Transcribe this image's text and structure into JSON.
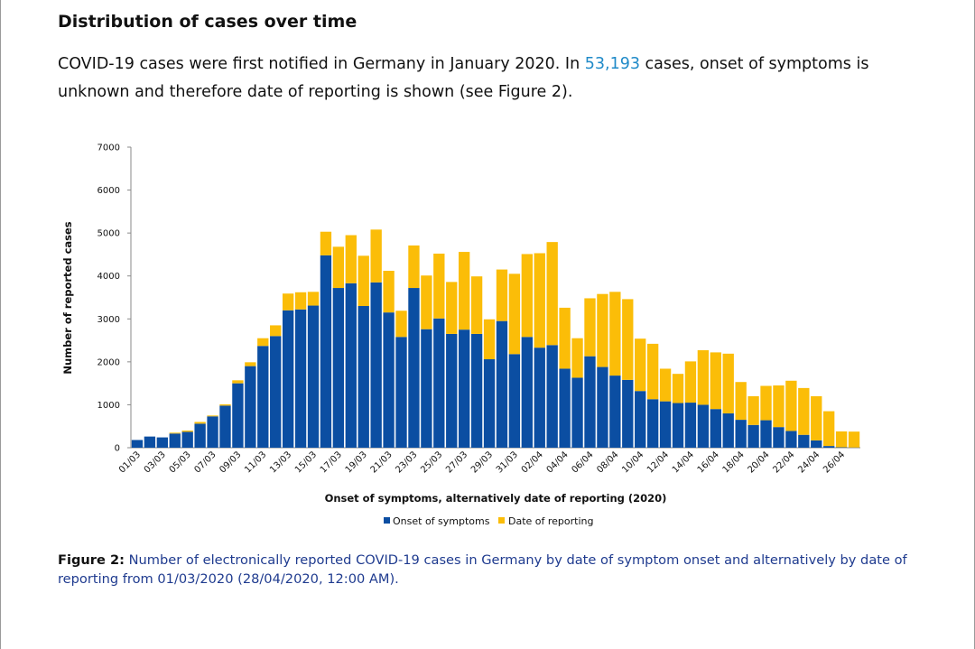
{
  "header": {
    "title": "Distribution of cases over time"
  },
  "intro": {
    "text_before": "COVID-19 cases were first notified in Germany in January 2020. In ",
    "highlight": "53,193",
    "text_after": " cases, onset of symptoms is unknown and therefore date of reporting is shown (see Figure 2)."
  },
  "colors": {
    "onset": "#0b4ea2",
    "reporting": "#fbbd08",
    "link": "#1f8ac8",
    "caption": "#1f3b8f"
  },
  "chart_data": {
    "type": "bar",
    "stacked": true,
    "title": "",
    "xlabel": "Onset of symptoms, alternatively date of reporting (2020)",
    "ylabel": "Number of reported cases",
    "ylim": [
      0,
      7000
    ],
    "yticks": [
      0,
      1000,
      2000,
      3000,
      4000,
      5000,
      6000,
      7000
    ],
    "xtick_labels": [
      "01/03",
      "03/03",
      "05/03",
      "07/03",
      "09/03",
      "11/03",
      "13/03",
      "15/03",
      "17/03",
      "19/03",
      "21/03",
      "23/03",
      "25/03",
      "27/03",
      "29/03",
      "31/03",
      "02/04",
      "04/04",
      "06/04",
      "08/04",
      "10/04",
      "12/04",
      "14/04",
      "16/04",
      "18/04",
      "20/04",
      "22/04",
      "24/04",
      "26/04"
    ],
    "categories": [
      "01/03",
      "02/03",
      "03/03",
      "04/03",
      "05/03",
      "06/03",
      "07/03",
      "08/03",
      "09/03",
      "10/03",
      "11/03",
      "12/03",
      "13/03",
      "14/03",
      "15/03",
      "16/03",
      "17/03",
      "18/03",
      "19/03",
      "20/03",
      "21/03",
      "22/03",
      "23/03",
      "24/03",
      "25/03",
      "26/03",
      "27/03",
      "28/03",
      "29/03",
      "30/03",
      "31/03",
      "01/04",
      "02/04",
      "03/04",
      "04/04",
      "05/04",
      "06/04",
      "07/04",
      "08/04",
      "09/04",
      "10/04",
      "11/04",
      "12/04",
      "13/04",
      "14/04",
      "15/04",
      "16/04",
      "17/04",
      "18/04",
      "19/04",
      "20/04",
      "21/04",
      "22/04",
      "23/04",
      "24/04",
      "25/04",
      "26/04",
      "27/04"
    ],
    "legend_position": "bottom",
    "series": [
      {
        "name": "Onset of symptoms",
        "color": "#0b4ea2",
        "values": [
          180,
          260,
          240,
          330,
          370,
          560,
          730,
          980,
          1500,
          1900,
          2370,
          2600,
          3200,
          3220,
          3310,
          4480,
          3720,
          3830,
          3300,
          3850,
          3150,
          2580,
          3720,
          2760,
          3010,
          2650,
          2750,
          2650,
          2060,
          2950,
          2180,
          2580,
          2330,
          2390,
          1840,
          1630,
          2130,
          1880,
          1680,
          1580,
          1320,
          1130,
          1080,
          1040,
          1050,
          1000,
          900,
          800,
          650,
          530,
          640,
          480,
          390,
          300,
          170,
          40,
          10,
          5
        ]
      },
      {
        "name": "Date of reporting",
        "color": "#fbbd08",
        "values": [
          0,
          0,
          0,
          20,
          30,
          40,
          20,
          30,
          70,
          90,
          180,
          250,
          390,
          400,
          320,
          550,
          960,
          1120,
          1170,
          1230,
          970,
          610,
          990,
          1250,
          1510,
          1210,
          1810,
          1340,
          930,
          1200,
          1870,
          1930,
          2200,
          2400,
          1420,
          920,
          1350,
          1700,
          1950,
          1880,
          1220,
          1290,
          760,
          680,
          960,
          1270,
          1320,
          1390,
          880,
          670,
          800,
          970,
          1170,
          1090,
          1030,
          810,
          370,
          370
        ]
      }
    ]
  },
  "caption": {
    "label": "Figure 2:",
    "text": " Number of electronically reported COVID-19 cases in Germany by date of symptom onset and alternatively by date of reporting from 01/03/2020 (28/04/2020, 12:00 AM)."
  }
}
